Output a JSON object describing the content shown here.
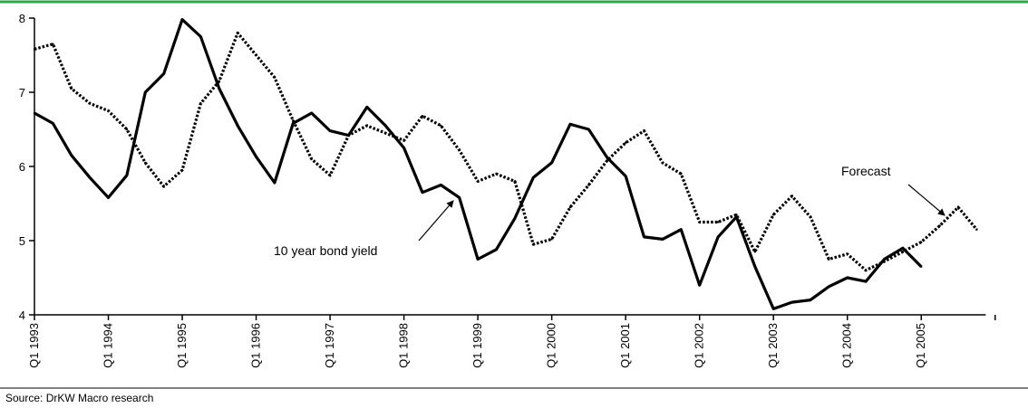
{
  "colors": {
    "top_rule": "#2ea84a",
    "line": "#000000"
  },
  "source": "Source: DrKW Macro research",
  "chart_data": {
    "type": "line",
    "title": "",
    "xlabel": "",
    "ylabel": "",
    "ylim": [
      4,
      8
    ],
    "y_ticks": [
      "4",
      "5",
      "6",
      "7",
      "8"
    ],
    "x_start": "Q1 1993",
    "x_ticks": [
      "Q1 1993",
      "Q1 1994",
      "Q1 1995",
      "Q1 1996",
      "Q1 1997",
      "Q1 1998",
      "Q1 1999",
      "Q1 2000",
      "Q1 2001",
      "Q1 2002",
      "Q1 2003",
      "Q1 2004",
      "Q1 2005"
    ],
    "annotations": [
      {
        "text": "10 year bond yield",
        "target_series": "bond_yield"
      },
      {
        "text": "Forecast",
        "target_series": "forecast"
      }
    ],
    "series": [
      {
        "id": "bond_yield",
        "style": "solid",
        "points": [
          [
            "Q1 1993",
            6.72
          ],
          [
            "Q2 1993",
            6.58
          ],
          [
            "Q3 1993",
            6.15
          ],
          [
            "Q4 1993",
            5.85
          ],
          [
            "Q1 1994",
            5.58
          ],
          [
            "Q2 1994",
            5.88
          ],
          [
            "Q3 1994",
            7.0
          ],
          [
            "Q4 1994",
            7.25
          ],
          [
            "Q1 1995",
            7.98
          ],
          [
            "Q2 1995",
            7.75
          ],
          [
            "Q3 1995",
            7.05
          ],
          [
            "Q4 1995",
            6.55
          ],
          [
            "Q1 1996",
            6.13
          ],
          [
            "Q2 1996",
            5.78
          ],
          [
            "Q3 1996",
            6.58
          ],
          [
            "Q4 1996",
            6.72
          ],
          [
            "Q1 1997",
            6.48
          ],
          [
            "Q2 1997",
            6.42
          ],
          [
            "Q3 1997",
            6.8
          ],
          [
            "Q4 1997",
            6.55
          ],
          [
            "Q1 1998",
            6.25
          ],
          [
            "Q2 1998",
            5.65
          ],
          [
            "Q3 1998",
            5.75
          ],
          [
            "Q4 1998",
            5.58
          ],
          [
            "Q1 1999",
            4.75
          ],
          [
            "Q2 1999",
            4.88
          ],
          [
            "Q3 1999",
            5.3
          ],
          [
            "Q4 1999",
            5.85
          ],
          [
            "Q1 2000",
            6.05
          ],
          [
            "Q2 2000",
            6.57
          ],
          [
            "Q3 2000",
            6.5
          ],
          [
            "Q4 2000",
            6.12
          ],
          [
            "Q1 2001",
            5.87
          ],
          [
            "Q2 2001",
            5.05
          ],
          [
            "Q3 2001",
            5.02
          ],
          [
            "Q4 2001",
            5.15
          ],
          [
            "Q1 2002",
            4.4
          ],
          [
            "Q2 2002",
            5.05
          ],
          [
            "Q3 2002",
            5.32
          ],
          [
            "Q4 2002",
            4.65
          ],
          [
            "Q1 2003",
            4.08
          ],
          [
            "Q2 2003",
            4.17
          ],
          [
            "Q3 2003",
            4.2
          ],
          [
            "Q4 2003",
            4.38
          ],
          [
            "Q1 2004",
            4.5
          ],
          [
            "Q2 2004",
            4.45
          ],
          [
            "Q3 2004",
            4.75
          ],
          [
            "Q4 2004",
            4.9
          ],
          [
            "Q1 2005",
            4.65
          ]
        ]
      },
      {
        "id": "forecast",
        "style": "dotted",
        "points": [
          [
            "Q1 1993",
            7.58
          ],
          [
            "Q2 1993",
            7.65
          ],
          [
            "Q3 1993",
            7.05
          ],
          [
            "Q4 1993",
            6.85
          ],
          [
            "Q1 1994",
            6.75
          ],
          [
            "Q2 1994",
            6.5
          ],
          [
            "Q3 1994",
            6.05
          ],
          [
            "Q4 1994",
            5.73
          ],
          [
            "Q1 1995",
            5.95
          ],
          [
            "Q2 1995",
            6.85
          ],
          [
            "Q3 1995",
            7.15
          ],
          [
            "Q4 1995",
            7.8
          ],
          [
            "Q1 1996",
            7.5
          ],
          [
            "Q2 1996",
            7.2
          ],
          [
            "Q3 1996",
            6.62
          ],
          [
            "Q4 1996",
            6.1
          ],
          [
            "Q1 1997",
            5.88
          ],
          [
            "Q2 1997",
            6.42
          ],
          [
            "Q3 1997",
            6.55
          ],
          [
            "Q4 1997",
            6.45
          ],
          [
            "Q1 1998",
            6.35
          ],
          [
            "Q2 1998",
            6.68
          ],
          [
            "Q3 1998",
            6.55
          ],
          [
            "Q4 1998",
            6.22
          ],
          [
            "Q1 1999",
            5.8
          ],
          [
            "Q2 1999",
            5.9
          ],
          [
            "Q3 1999",
            5.8
          ],
          [
            "Q4 1999",
            4.95
          ],
          [
            "Q1 2000",
            5.02
          ],
          [
            "Q2 2000",
            5.45
          ],
          [
            "Q3 2000",
            5.75
          ],
          [
            "Q4 2000",
            6.08
          ],
          [
            "Q1 2001",
            6.32
          ],
          [
            "Q2 2001",
            6.48
          ],
          [
            "Q3 2001",
            6.05
          ],
          [
            "Q4 2001",
            5.9
          ],
          [
            "Q1 2002",
            5.25
          ],
          [
            "Q2 2002",
            5.25
          ],
          [
            "Q3 2002",
            5.35
          ],
          [
            "Q4 2002",
            4.85
          ],
          [
            "Q1 2003",
            5.35
          ],
          [
            "Q2 2003",
            5.6
          ],
          [
            "Q3 2003",
            5.32
          ],
          [
            "Q4 2003",
            4.75
          ],
          [
            "Q1 2004",
            4.82
          ],
          [
            "Q2 2004",
            4.6
          ],
          [
            "Q3 2004",
            4.72
          ],
          [
            "Q4 2004",
            4.85
          ],
          [
            "Q1 2005",
            4.98
          ],
          [
            "Q2 2005",
            5.2
          ],
          [
            "Q3 2005",
            5.45
          ],
          [
            "Q4 2005",
            5.15
          ]
        ]
      }
    ]
  }
}
